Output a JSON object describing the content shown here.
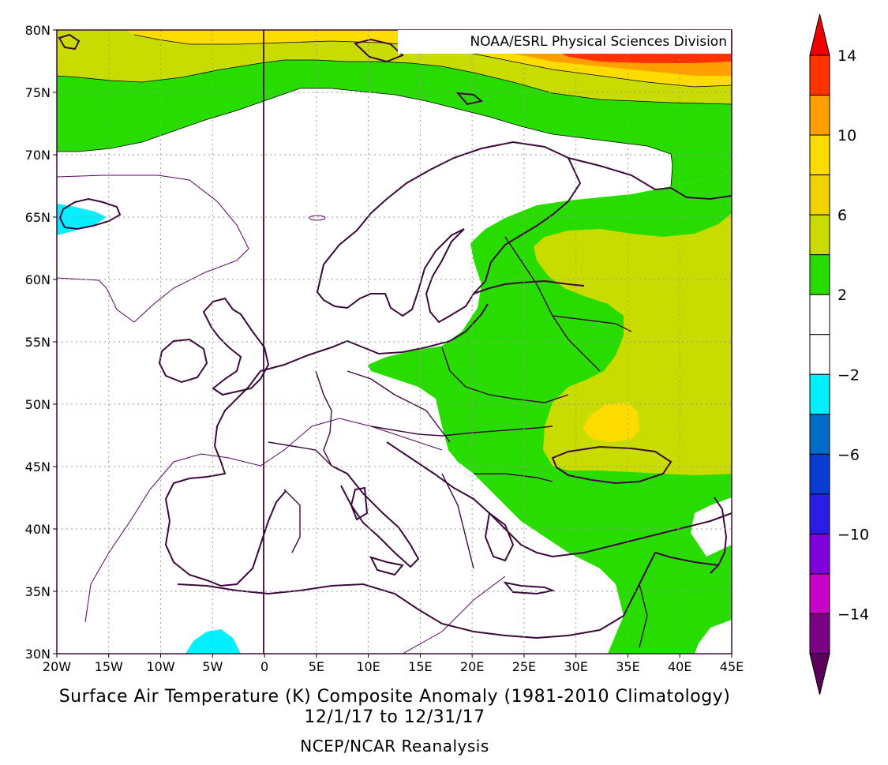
{
  "credit": "NOAA/ESRL Physical Sciences Division",
  "title_line1": "Surface Air Temperature (K) Composite Anomaly (1981-2010 Climatology)",
  "title_line2": "12/1/17  to 12/31/17",
  "source": "NCEP/NCAR Reanalysis",
  "lat_ticks": [
    "80N",
    "75N",
    "70N",
    "65N",
    "60N",
    "55N",
    "50N",
    "45N",
    "40N",
    "35N",
    "30N"
  ],
  "lon_ticks": [
    "20W",
    "15W",
    "10W",
    "5W",
    "0",
    "5E",
    "10E",
    "15E",
    "20E",
    "25E",
    "30E",
    "35E",
    "40E",
    "45E"
  ],
  "colorbar": {
    "colors": [
      "#5c005c",
      "#7c0084",
      "#c800c8",
      "#8200dc",
      "#2a1ee6",
      "#0a3cd2",
      "#006cc8",
      "#00f0ff",
      "#ffffff",
      "#ffffff",
      "#28dc00",
      "#c8dc00",
      "#f0d200",
      "#ffdc00",
      "#ffa000",
      "#ff3200",
      "#f00000"
    ],
    "labels": [
      "-14",
      "-10",
      "-6",
      "-2",
      "2",
      "6",
      "10",
      "14"
    ]
  },
  "map": {
    "lon_range": [
      -20,
      45
    ],
    "lat_range": [
      30,
      80
    ],
    "field": "surface air temperature anomaly (K)",
    "fill_colors": {
      "cyan": "#00f0ff",
      "green": "#28dc00",
      "lime": "#c8dc00",
      "yellow": "#ffdc00",
      "orange": "#ffa000",
      "red": "#ff3200"
    }
  }
}
